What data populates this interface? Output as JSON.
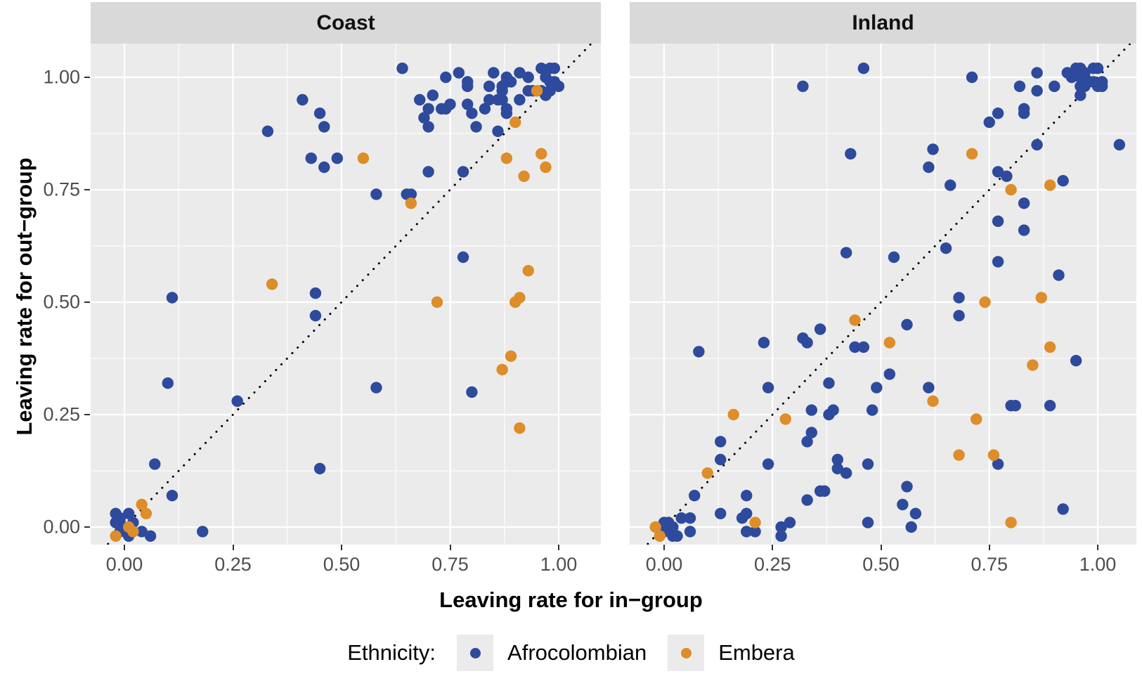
{
  "panels": [
    {
      "title": "Coast"
    },
    {
      "title": "Inland"
    }
  ],
  "axis": {
    "x_title": "Leaving rate for in−group",
    "y_title": "Leaving rate for out−group",
    "x_tick_labels": [
      "0.00",
      "0.25",
      "0.50",
      "0.75",
      "1.00"
    ],
    "y_tick_labels": [
      "0.00",
      "0.25",
      "0.50",
      "0.75",
      "1.00"
    ]
  },
  "legend": {
    "title": "Ethnicity:",
    "entries": [
      {
        "label": "Afrocolombian",
        "color": "#2e4a9c"
      },
      {
        "label": "Embera",
        "color": "#dd8d29"
      }
    ]
  },
  "style": {
    "panel_background": "#ebebeb",
    "strip_background": "#d9d9d9",
    "grid_color": "#ffffff",
    "axis_text_color": "#4d4d4d",
    "identity_line_color": "#000000",
    "afrocolombian_color": "#2e4a9c",
    "embera_color": "#dd8d29"
  },
  "chart_data": [
    {
      "type": "scatter",
      "panel": "Coast",
      "xlabel": "Leaving rate for in−group",
      "ylabel": "Leaving rate for out−group",
      "xlim": [
        -0.08,
        1.1
      ],
      "ylim": [
        -0.04,
        1.08
      ],
      "x_ticks": [
        0,
        0.25,
        0.5,
        0.75,
        1.0
      ],
      "y_ticks": [
        0,
        0.25,
        0.5,
        0.75,
        1.0
      ],
      "grid": true,
      "identity_line": true,
      "series": [
        {
          "name": "Afrocolombian",
          "points": [
            [
              0.64,
              1.02
            ],
            [
              0.77,
              1.01
            ],
            [
              0.74,
              1.0
            ],
            [
              0.79,
              0.99
            ],
            [
              0.79,
              0.98
            ],
            [
              0.85,
              1.01
            ],
            [
              0.88,
              1.0
            ],
            [
              0.88,
              0.99
            ],
            [
              0.89,
              0.99
            ],
            [
              0.91,
              1.01
            ],
            [
              0.93,
              1.0
            ],
            [
              0.96,
              1.02
            ],
            [
              0.98,
              1.02
            ],
            [
              0.99,
              1.02
            ],
            [
              0.97,
              1.0
            ],
            [
              0.98,
              0.99
            ],
            [
              0.99,
              0.99
            ],
            [
              1.0,
              0.98
            ],
            [
              0.98,
              0.97
            ],
            [
              0.96,
              0.97
            ],
            [
              0.97,
              0.96
            ],
            [
              0.84,
              0.98
            ],
            [
              0.87,
              0.98
            ],
            [
              0.87,
              0.97
            ],
            [
              0.94,
              0.97
            ],
            [
              0.71,
              0.96
            ],
            [
              0.68,
              0.95
            ],
            [
              0.7,
              0.93
            ],
            [
              0.73,
              0.93
            ],
            [
              0.74,
              0.93
            ],
            [
              0.75,
              0.94
            ],
            [
              0.69,
              0.91
            ],
            [
              0.79,
              0.94
            ],
            [
              0.8,
              0.92
            ],
            [
              0.83,
              0.93
            ],
            [
              0.84,
              0.95
            ],
            [
              0.86,
              0.95
            ],
            [
              0.87,
              0.95
            ],
            [
              0.88,
              0.93
            ],
            [
              0.88,
              0.92
            ],
            [
              0.91,
              0.95
            ],
            [
              0.93,
              0.97
            ],
            [
              0.7,
              0.89
            ],
            [
              0.81,
              0.89
            ],
            [
              0.86,
              0.88
            ],
            [
              0.41,
              0.95
            ],
            [
              0.45,
              0.92
            ],
            [
              0.46,
              0.89
            ],
            [
              0.33,
              0.88
            ],
            [
              0.43,
              0.82
            ],
            [
              0.46,
              0.8
            ],
            [
              0.49,
              0.82
            ],
            [
              0.58,
              0.74
            ],
            [
              0.7,
              0.79
            ],
            [
              0.78,
              0.79
            ],
            [
              0.65,
              0.74
            ],
            [
              0.66,
              0.74
            ],
            [
              0.78,
              0.6
            ],
            [
              0.8,
              0.3
            ],
            [
              0.11,
              0.51
            ],
            [
              0.44,
              0.52
            ],
            [
              0.44,
              0.47
            ],
            [
              0.1,
              0.32
            ],
            [
              0.26,
              0.28
            ],
            [
              0.58,
              0.31
            ],
            [
              0.07,
              0.14
            ],
            [
              0.45,
              0.13
            ],
            [
              0.11,
              0.07
            ],
            [
              -0.02,
              0.03
            ],
            [
              -0.01,
              0.02
            ],
            [
              0.01,
              0.03
            ],
            [
              -0.02,
              0.01
            ],
            [
              0.02,
              0.01
            ],
            [
              -0.01,
              0.01
            ],
            [
              -0.01,
              -0.01
            ],
            [
              0.01,
              -0.02
            ],
            [
              0.04,
              -0.01
            ],
            [
              0.06,
              -0.02
            ],
            [
              0.18,
              -0.01
            ]
          ]
        },
        {
          "name": "Embera",
          "points": [
            [
              0.95,
              0.97
            ],
            [
              0.9,
              0.9
            ],
            [
              0.88,
              0.82
            ],
            [
              0.96,
              0.83
            ],
            [
              0.97,
              0.8
            ],
            [
              0.92,
              0.78
            ],
            [
              0.66,
              0.72
            ],
            [
              0.55,
              0.82
            ],
            [
              0.34,
              0.54
            ],
            [
              0.93,
              0.57
            ],
            [
              0.72,
              0.5
            ],
            [
              0.9,
              0.5
            ],
            [
              0.91,
              0.51
            ],
            [
              0.89,
              0.38
            ],
            [
              0.87,
              0.35
            ],
            [
              0.91,
              0.22
            ],
            [
              0.04,
              0.05
            ],
            [
              0.05,
              0.03
            ],
            [
              0.01,
              0.0
            ],
            [
              0.02,
              -0.01
            ],
            [
              -0.02,
              -0.02
            ]
          ]
        }
      ]
    },
    {
      "type": "scatter",
      "panel": "Inland",
      "xlabel": "Leaving rate for in−group",
      "ylabel": "Leaving rate for out−group",
      "xlim": [
        -0.08,
        1.1
      ],
      "ylim": [
        -0.04,
        1.08
      ],
      "x_ticks": [
        0,
        0.25,
        0.5,
        0.75,
        1.0
      ],
      "y_ticks": [
        0,
        0.25,
        0.5,
        0.75,
        1.0
      ],
      "grid": true,
      "identity_line": true,
      "series": [
        {
          "name": "Afrocolombian",
          "points": [
            [
              0.86,
              1.01
            ],
            [
              0.82,
              0.98
            ],
            [
              0.86,
              0.97
            ],
            [
              0.9,
              0.98
            ],
            [
              0.93,
              1.01
            ],
            [
              0.95,
              1.02
            ],
            [
              0.96,
              1.02
            ],
            [
              0.97,
              1.01
            ],
            [
              0.94,
              1.0
            ],
            [
              0.96,
              1.0
            ],
            [
              0.97,
              1.0
            ],
            [
              0.99,
              1.02
            ],
            [
              1.0,
              1.02
            ],
            [
              0.96,
              0.98
            ],
            [
              0.97,
              0.98
            ],
            [
              0.98,
              0.99
            ],
            [
              0.99,
              0.99
            ],
            [
              0.96,
              0.96
            ],
            [
              1.0,
              0.98
            ],
            [
              1.01,
              0.98
            ],
            [
              1.01,
              0.99
            ],
            [
              0.83,
              0.93
            ],
            [
              0.83,
              0.92
            ],
            [
              0.86,
              0.85
            ],
            [
              1.05,
              0.85
            ],
            [
              0.92,
              0.77
            ],
            [
              0.32,
              0.98
            ],
            [
              0.46,
              1.02
            ],
            [
              0.71,
              1.0
            ],
            [
              0.75,
              0.9
            ],
            [
              0.77,
              0.92
            ],
            [
              0.43,
              0.83
            ],
            [
              0.62,
              0.84
            ],
            [
              0.61,
              0.8
            ],
            [
              0.66,
              0.76
            ],
            [
              0.77,
              0.79
            ],
            [
              0.79,
              0.78
            ],
            [
              0.83,
              0.72
            ],
            [
              0.77,
              0.68
            ],
            [
              0.83,
              0.66
            ],
            [
              0.65,
              0.62
            ],
            [
              0.53,
              0.6
            ],
            [
              0.77,
              0.59
            ],
            [
              0.91,
              0.56
            ],
            [
              0.42,
              0.61
            ],
            [
              0.68,
              0.51
            ],
            [
              0.68,
              0.47
            ],
            [
              0.56,
              0.45
            ],
            [
              0.36,
              0.44
            ],
            [
              0.32,
              0.42
            ],
            [
              0.33,
              0.41
            ],
            [
              0.23,
              0.41
            ],
            [
              0.08,
              0.39
            ],
            [
              0.44,
              0.4
            ],
            [
              0.46,
              0.4
            ],
            [
              0.38,
              0.32
            ],
            [
              0.24,
              0.31
            ],
            [
              0.49,
              0.31
            ],
            [
              0.52,
              0.34
            ],
            [
              0.61,
              0.31
            ],
            [
              0.95,
              0.37
            ],
            [
              0.34,
              0.26
            ],
            [
              0.38,
              0.25
            ],
            [
              0.39,
              0.26
            ],
            [
              0.48,
              0.26
            ],
            [
              0.8,
              0.27
            ],
            [
              0.81,
              0.27
            ],
            [
              0.89,
              0.27
            ],
            [
              0.34,
              0.21
            ],
            [
              0.33,
              0.19
            ],
            [
              0.13,
              0.19
            ],
            [
              0.4,
              0.15
            ],
            [
              0.4,
              0.13
            ],
            [
              0.42,
              0.12
            ],
            [
              0.47,
              0.14
            ],
            [
              0.77,
              0.14
            ],
            [
              0.13,
              0.15
            ],
            [
              0.24,
              0.14
            ],
            [
              0.07,
              0.07
            ],
            [
              0.19,
              0.07
            ],
            [
              0.33,
              0.06
            ],
            [
              0.36,
              0.08
            ],
            [
              0.37,
              0.08
            ],
            [
              0.13,
              0.03
            ],
            [
              0.04,
              0.02
            ],
            [
              0.06,
              0.02
            ],
            [
              0.0,
              0.01
            ],
            [
              0.01,
              0.01
            ],
            [
              0.02,
              0.0
            ],
            [
              0.0,
              -0.01
            ],
            [
              0.02,
              -0.02
            ],
            [
              0.03,
              -0.02
            ],
            [
              0.06,
              -0.01
            ],
            [
              0.18,
              0.02
            ],
            [
              0.19,
              0.03
            ],
            [
              0.19,
              -0.01
            ],
            [
              0.21,
              -0.01
            ],
            [
              0.27,
              0.0
            ],
            [
              0.27,
              -0.02
            ],
            [
              0.29,
              0.01
            ],
            [
              0.56,
              0.09
            ],
            [
              0.55,
              0.05
            ],
            [
              0.58,
              0.03
            ],
            [
              0.47,
              0.01
            ],
            [
              0.57,
              0.0
            ],
            [
              0.92,
              0.04
            ]
          ]
        },
        {
          "name": "Embera",
          "points": [
            [
              0.71,
              0.83
            ],
            [
              0.89,
              0.76
            ],
            [
              0.8,
              0.75
            ],
            [
              0.44,
              0.46
            ],
            [
              0.74,
              0.5
            ],
            [
              0.87,
              0.51
            ],
            [
              0.52,
              0.41
            ],
            [
              0.89,
              0.4
            ],
            [
              0.85,
              0.36
            ],
            [
              0.62,
              0.28
            ],
            [
              0.72,
              0.24
            ],
            [
              0.68,
              0.16
            ],
            [
              0.76,
              0.16
            ],
            [
              0.16,
              0.25
            ],
            [
              0.28,
              0.24
            ],
            [
              0.1,
              0.12
            ],
            [
              0.21,
              0.01
            ],
            [
              0.8,
              0.01
            ],
            [
              -0.02,
              0.0
            ],
            [
              -0.01,
              -0.02
            ]
          ]
        }
      ]
    }
  ]
}
